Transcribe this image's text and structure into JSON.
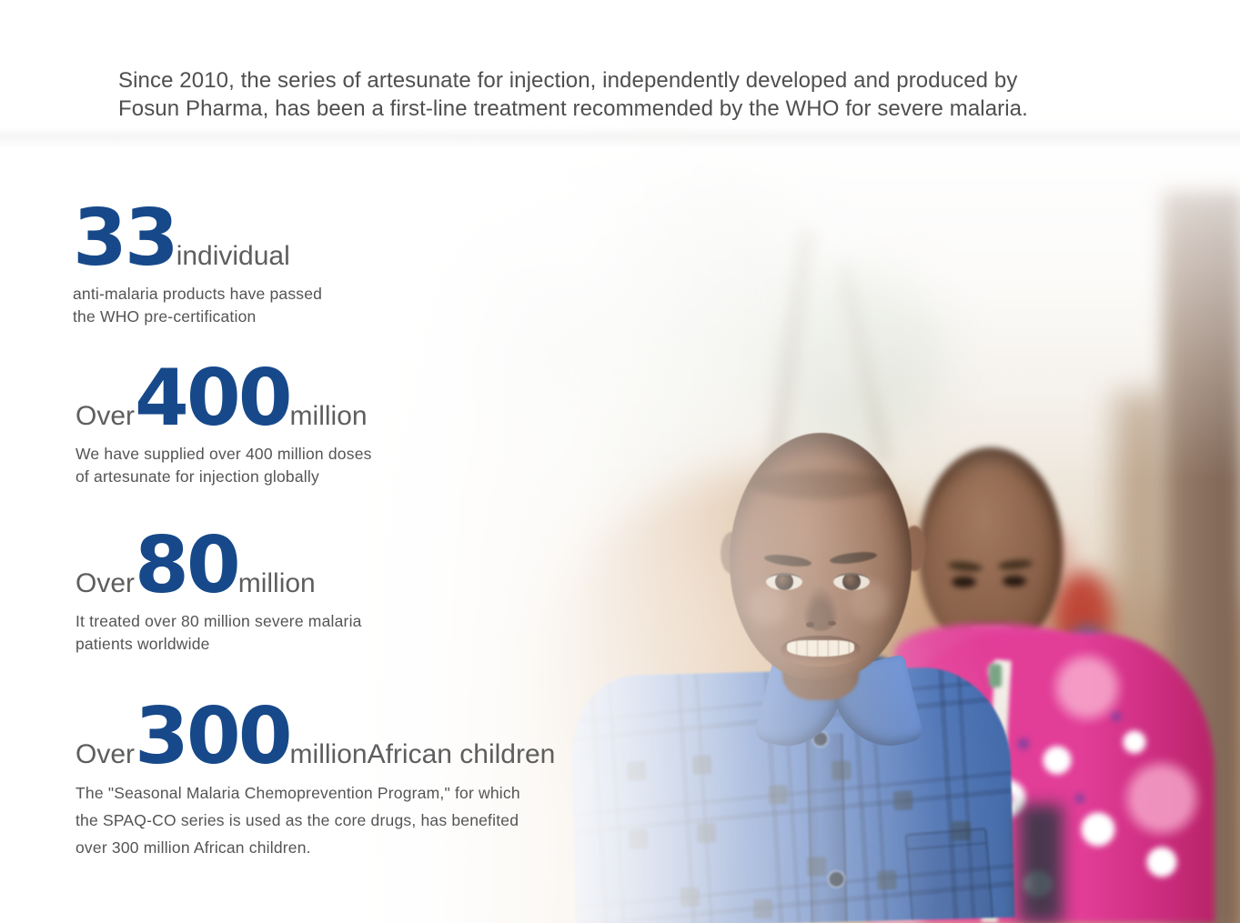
{
  "colors": {
    "accent_blue": "#17498A",
    "intro_gray": "#4F4F4F",
    "label_gray": "#5E5E5E",
    "desc_gray": "#545454"
  },
  "intro": {
    "line1": "Since 2010, the series of artesunate for injection, independently developed and produced by",
    "line2": "Fosun Pharma, has been a first-line treatment recommended by the WHO for severe malaria."
  },
  "stats": [
    {
      "prefix": "",
      "number": "33",
      "suffix": "individual",
      "description": "anti-malaria products have passed\nthe WHO pre-certification"
    },
    {
      "prefix": "Over",
      "number": "400",
      "suffix": "million",
      "description": "We have supplied over 400 million doses\nof artesunate for injection globally"
    },
    {
      "prefix": "Over",
      "number": "80",
      "suffix": "million",
      "description": "It treated over 80 million severe malaria\npatients worldwide"
    },
    {
      "prefix": "Over",
      "number": "300",
      "suffix": "millionAfrican children",
      "description": "The \"Seasonal Malaria Chemoprevention Program,\" for which\nthe SPAQ-CO series is used as the core drugs, has benefited\nover 300 million African children."
    }
  ],
  "photo": {
    "alt": "Two smiling African children outdoors: a boy in a blue plaid shirt in front and a child in a pink floral fleece jacket behind, with blurred trees and sandy ground"
  }
}
